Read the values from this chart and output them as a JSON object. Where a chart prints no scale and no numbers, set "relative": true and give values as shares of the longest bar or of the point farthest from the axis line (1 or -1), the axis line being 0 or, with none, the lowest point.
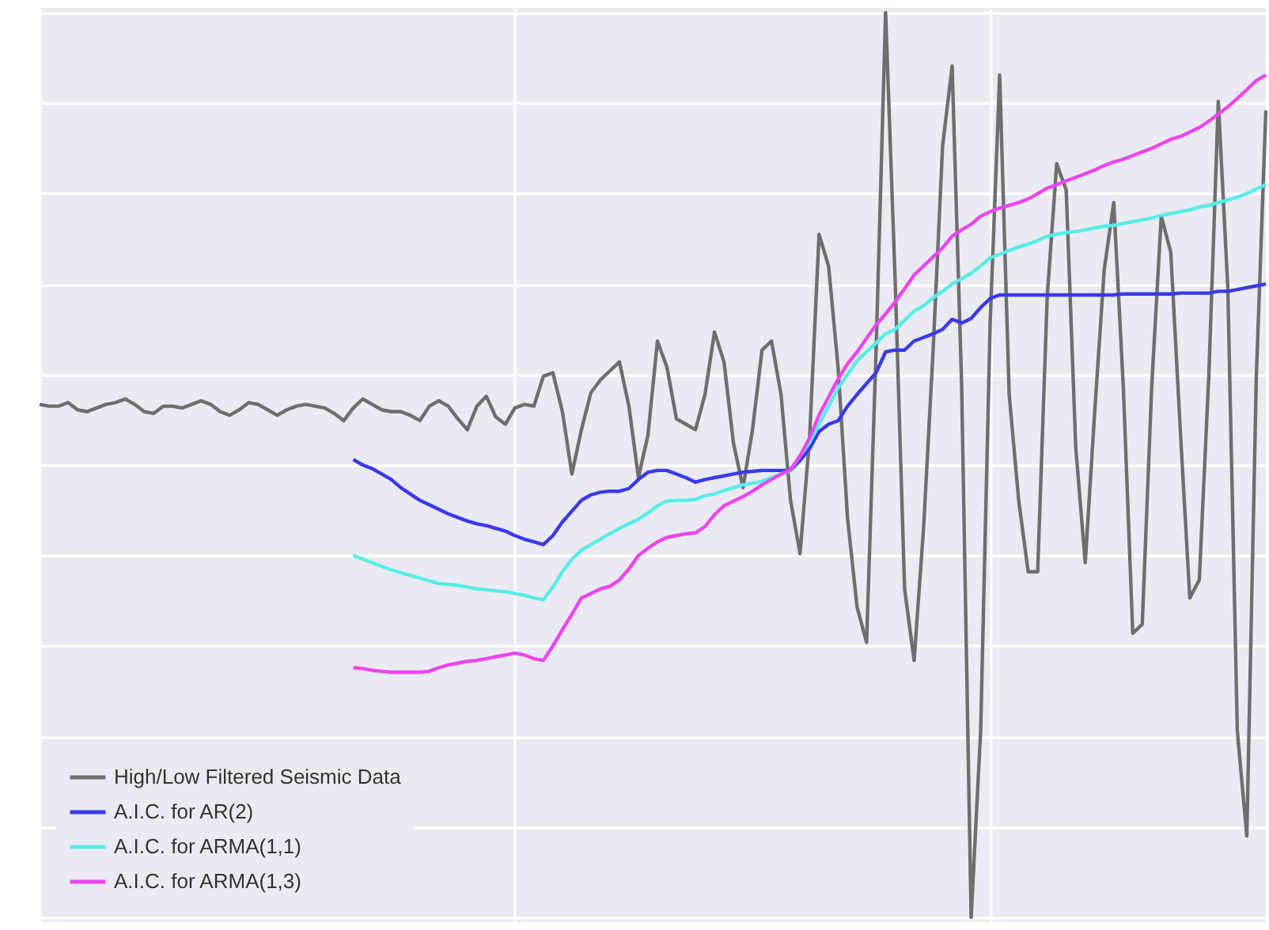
{
  "chart_data": {
    "type": "line",
    "relative": true,
    "grid": true,
    "legend": "bottom left",
    "categories": [
      null,
      null,
      null,
      null,
      null,
      null,
      null,
      null,
      null,
      null,
      null,
      null,
      null,
      null,
      null,
      null,
      null,
      null,
      null,
      null,
      null,
      null,
      null,
      null,
      null,
      null,
      null,
      null,
      null,
      null,
      null,
      null,
      null,
      null,
      null,
      null,
      null,
      null,
      null,
      null,
      null,
      null,
      null,
      null,
      null,
      null,
      null,
      null,
      null,
      null,
      null,
      null,
      null,
      null,
      null,
      null,
      null,
      null,
      null,
      null,
      null,
      null,
      null,
      null,
      null,
      null,
      null,
      null,
      null,
      null,
      null,
      null,
      null,
      null,
      null,
      null,
      null,
      null,
      null,
      null,
      null,
      null,
      null,
      null,
      null,
      null,
      null,
      null,
      null,
      null,
      null,
      null,
      null,
      null,
      null,
      null,
      null,
      null,
      null,
      null,
      null,
      null,
      null,
      null,
      null,
      null,
      null,
      null,
      null,
      null,
      null,
      null,
      null,
      null,
      null,
      null,
      null,
      null,
      null,
      null,
      null,
      null,
      null,
      null,
      null,
      null,
      null,
      null,
      null,
      null
    ],
    "series": [
      {
        "name": "High/Low Filtered Seismic Data",
        "color": "#6e6e6e",
        "values": [
          0.567,
          0.565,
          0.565,
          0.569,
          0.561,
          0.559,
          0.563,
          0.567,
          0.569,
          0.573,
          0.567,
          0.559,
          0.557,
          0.565,
          0.565,
          0.563,
          0.567,
          0.571,
          0.567,
          0.559,
          0.555,
          0.561,
          0.569,
          0.567,
          0.561,
          0.555,
          0.561,
          0.565,
          0.567,
          0.565,
          0.563,
          0.557,
          0.549,
          0.563,
          0.573,
          0.567,
          0.561,
          0.559,
          0.559,
          0.555,
          0.549,
          0.565,
          0.571,
          0.565,
          0.551,
          0.539,
          0.565,
          0.576,
          0.553,
          0.545,
          0.563,
          0.567,
          0.565,
          0.598,
          0.602,
          0.559,
          0.49,
          0.539,
          0.58,
          0.594,
          0.604,
          0.614,
          0.565,
          0.486,
          0.533,
          0.637,
          0.608,
          0.551,
          0.545,
          0.539,
          0.578,
          0.647,
          0.614,
          0.524,
          0.475,
          0.539,
          0.627,
          0.637,
          0.578,
          0.461,
          0.402,
          0.529,
          0.755,
          0.72,
          0.608,
          0.441,
          0.343,
          0.304,
          0.627,
          1.0,
          0.706,
          0.363,
          0.284,
          0.431,
          0.627,
          0.853,
          0.941,
          0.588,
          0.0,
          0.206,
          0.657,
          0.931,
          0.578,
          0.461,
          0.382,
          0.382,
          0.686,
          0.833,
          0.804,
          0.52,
          0.392,
          0.559,
          0.716,
          0.79,
          0.588,
          0.314,
          0.324,
          0.588,
          0.775,
          0.735,
          0.539,
          0.353,
          0.373,
          0.598,
          0.902,
          0.696,
          0.206,
          0.09,
          0.598,
          0.892
        ]
      },
      {
        "name": "A.I.C. for AR(2)",
        "color": "#3a3ae8",
        "values": [
          null,
          null,
          null,
          null,
          null,
          null,
          null,
          null,
          null,
          null,
          null,
          null,
          null,
          null,
          null,
          null,
          null,
          null,
          null,
          null,
          null,
          null,
          null,
          null,
          null,
          null,
          null,
          null,
          null,
          null,
          null,
          null,
          null,
          0.506,
          0.5,
          0.496,
          0.49,
          0.484,
          0.475,
          0.468,
          0.461,
          0.456,
          0.451,
          0.446,
          0.442,
          0.438,
          0.435,
          0.433,
          0.43,
          0.427,
          0.422,
          0.418,
          0.415,
          0.412,
          0.422,
          0.437,
          0.449,
          0.461,
          0.467,
          0.47,
          0.471,
          0.471,
          0.474,
          0.484,
          0.492,
          0.494,
          0.494,
          0.49,
          0.486,
          0.481,
          0.484,
          0.486,
          0.488,
          0.49,
          0.492,
          0.493,
          0.494,
          0.494,
          0.494,
          0.494,
          0.505,
          0.518,
          0.537,
          0.545,
          0.549,
          0.565,
          0.578,
          0.59,
          0.602,
          0.625,
          0.627,
          0.627,
          0.637,
          0.641,
          0.645,
          0.65,
          0.661,
          0.657,
          0.662,
          0.674,
          0.684,
          0.688,
          0.688,
          0.688,
          0.688,
          0.688,
          0.688,
          0.688,
          0.688,
          0.688,
          0.688,
          0.688,
          0.688,
          0.688,
          0.689,
          0.689,
          0.689,
          0.689,
          0.689,
          0.689,
          0.69,
          0.69,
          0.69,
          0.69,
          0.692,
          0.692,
          0.694,
          0.696,
          0.698,
          0.7
        ]
      },
      {
        "name": "A.I.C. for ARMA(1,1)",
        "color": "#55eee6",
        "values": [
          null,
          null,
          null,
          null,
          null,
          null,
          null,
          null,
          null,
          null,
          null,
          null,
          null,
          null,
          null,
          null,
          null,
          null,
          null,
          null,
          null,
          null,
          null,
          null,
          null,
          null,
          null,
          null,
          null,
          null,
          null,
          null,
          null,
          0.4,
          0.396,
          0.392,
          0.388,
          0.384,
          0.381,
          0.378,
          0.375,
          0.372,
          0.369,
          0.368,
          0.367,
          0.365,
          0.363,
          0.362,
          0.361,
          0.36,
          0.358,
          0.356,
          0.353,
          0.351,
          0.365,
          0.382,
          0.396,
          0.406,
          0.412,
          0.418,
          0.424,
          0.43,
          0.435,
          0.44,
          0.447,
          0.455,
          0.46,
          0.461,
          0.461,
          0.462,
          0.466,
          0.468,
          0.472,
          0.475,
          0.478,
          0.48,
          0.482,
          0.486,
          0.49,
          0.494,
          0.51,
          0.525,
          0.545,
          0.565,
          0.585,
          0.6,
          0.615,
          0.625,
          0.635,
          0.645,
          0.65,
          0.66,
          0.67,
          0.676,
          0.685,
          0.692,
          0.7,
          0.706,
          0.712,
          0.72,
          0.729,
          0.733,
          0.737,
          0.741,
          0.744,
          0.748,
          0.753,
          0.755,
          0.757,
          0.758,
          0.76,
          0.762,
          0.764,
          0.765,
          0.767,
          0.769,
          0.771,
          0.773,
          0.776,
          0.778,
          0.78,
          0.782,
          0.785,
          0.787,
          0.79,
          0.793,
          0.796,
          0.8,
          0.805,
          0.81
        ]
      },
      {
        "name": "A.I.C. for ARMA(1,3)",
        "color": "#ee44ee",
        "values": [
          null,
          null,
          null,
          null,
          null,
          null,
          null,
          null,
          null,
          null,
          null,
          null,
          null,
          null,
          null,
          null,
          null,
          null,
          null,
          null,
          null,
          null,
          null,
          null,
          null,
          null,
          null,
          null,
          null,
          null,
          null,
          null,
          null,
          0.276,
          0.275,
          0.273,
          0.272,
          0.271,
          0.271,
          0.271,
          0.271,
          0.272,
          0.276,
          0.279,
          0.281,
          0.283,
          0.284,
          0.286,
          0.288,
          0.29,
          0.292,
          0.29,
          0.286,
          0.284,
          0.3,
          0.318,
          0.335,
          0.353,
          0.358,
          0.363,
          0.366,
          0.373,
          0.385,
          0.4,
          0.408,
          0.415,
          0.42,
          0.422,
          0.424,
          0.425,
          0.432,
          0.445,
          0.455,
          0.46,
          0.465,
          0.471,
          0.478,
          0.484,
          0.49,
          0.495,
          0.51,
          0.53,
          0.555,
          0.575,
          0.595,
          0.612,
          0.625,
          0.64,
          0.655,
          0.667,
          0.68,
          0.695,
          0.71,
          0.72,
          0.73,
          0.74,
          0.753,
          0.76,
          0.766,
          0.775,
          0.78,
          0.784,
          0.787,
          0.79,
          0.794,
          0.8,
          0.806,
          0.81,
          0.814,
          0.818,
          0.822,
          0.826,
          0.831,
          0.835,
          0.838,
          0.842,
          0.846,
          0.85,
          0.855,
          0.86,
          0.863,
          0.868,
          0.873,
          0.88,
          0.888,
          0.896,
          0.905,
          0.915,
          0.925,
          0.931
        ]
      }
    ]
  }
}
